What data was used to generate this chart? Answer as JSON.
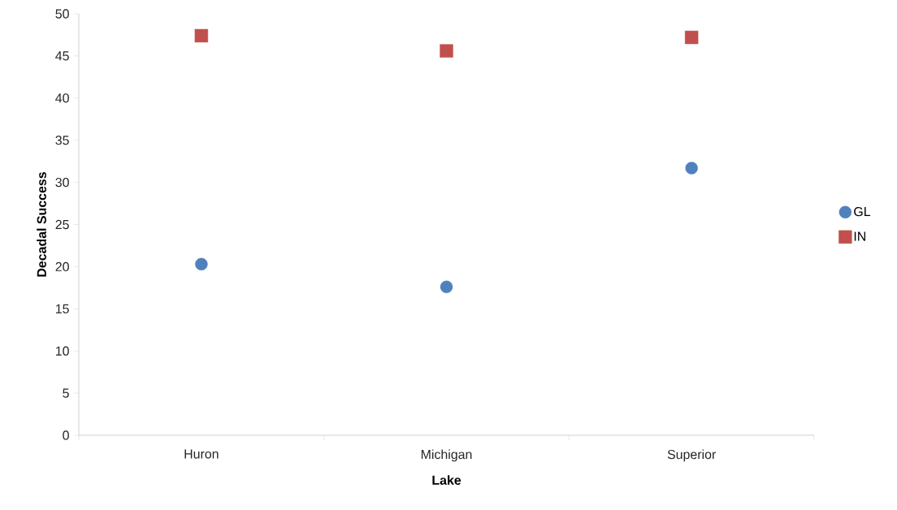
{
  "chart_data": {
    "type": "scatter",
    "xlabel": "Lake",
    "ylabel": "Decadal Success",
    "categories": [
      "Huron",
      "Michigan",
      "Superior"
    ],
    "series": [
      {
        "name": "GL",
        "color": "#4f81bd",
        "marker": "circle",
        "values": [
          20.3,
          17.6,
          31.7
        ]
      },
      {
        "name": "IN",
        "color": "#c0504d",
        "marker": "square",
        "values": [
          47.4,
          45.6,
          47.2
        ]
      }
    ],
    "ylim": [
      0,
      50
    ],
    "yticks": [
      0,
      5,
      10,
      15,
      20,
      25,
      30,
      35,
      40,
      45,
      50
    ],
    "legend": "right"
  }
}
